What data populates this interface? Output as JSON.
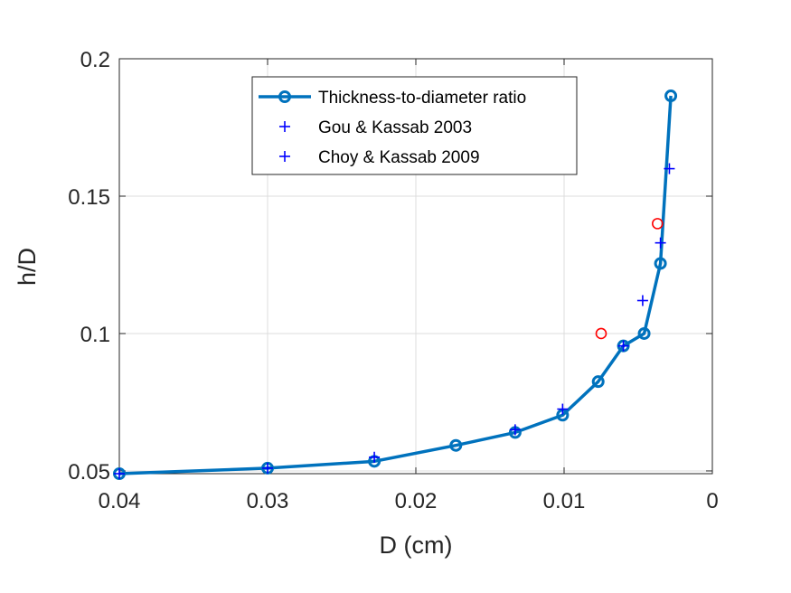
{
  "chart_data": {
    "type": "line",
    "xlabel": "D (cm)",
    "ylabel": "h/D",
    "xlim": [
      0.04,
      0
    ],
    "x_reversed": true,
    "ylim": [
      0.049,
      0.2
    ],
    "x_ticks": [
      0.04,
      0.03,
      0.02,
      0.01,
      0
    ],
    "x_tick_labels": [
      "0.04",
      "0.03",
      "0.02",
      "0.01",
      "0"
    ],
    "y_ticks": [
      0.05,
      0.1,
      0.15,
      0.2
    ],
    "y_tick_labels": [
      "0.05",
      "0.1",
      "0.15",
      "0.2"
    ],
    "grid": true,
    "legend_placement": "top-center",
    "series": [
      {
        "name": "Thickness-to-diameter ratio",
        "style": "line-circle",
        "color": "#0072BD",
        "x": [
          0.04,
          0.03,
          0.0228,
          0.0173,
          0.0133,
          0.0101,
          0.0077,
          0.006,
          0.0046,
          0.0035,
          0.0028
        ],
        "y": [
          0.049,
          0.051,
          0.0535,
          0.0593,
          0.064,
          0.0703,
          0.0825,
          0.0955,
          0.1,
          0.1255,
          0.1865
        ]
      },
      {
        "name": "Gou & Kassab 2003",
        "style": "plus",
        "color": "#0000FF",
        "x": [
          0.04,
          0.03,
          0.0228,
          0.0133,
          0.0101,
          0.006,
          0.0047,
          0.0035,
          0.0029
        ],
        "y": [
          0.049,
          0.051,
          0.055,
          0.065,
          0.0725,
          0.0955,
          0.112,
          0.133,
          0.16
        ]
      },
      {
        "name": "Choy & Kassab 2009",
        "style": "plus",
        "color": "#0000FF",
        "x": [],
        "y": []
      },
      {
        "style": "circle",
        "color": "#FF0000",
        "x": [
          0.0075,
          0.0037
        ],
        "y": [
          0.1,
          0.14
        ]
      }
    ]
  }
}
